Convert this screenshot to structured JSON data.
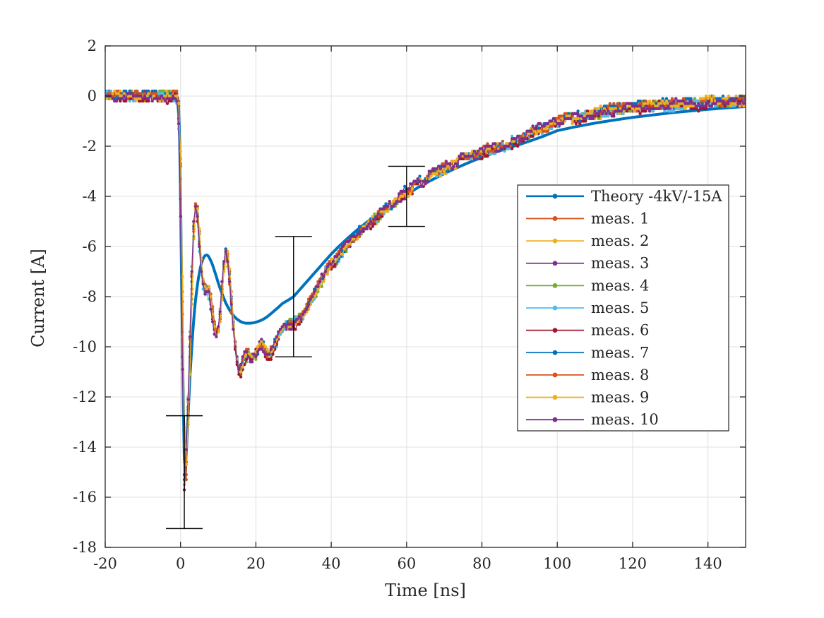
{
  "figure": {
    "background": "#ffffff",
    "axes_color": "#262626",
    "grid_color": "#e0e0e0",
    "errorbar_color": "#000000"
  },
  "chart_data": {
    "type": "line",
    "title": "",
    "xlabel": "Time [ns]",
    "ylabel": "Current [A]",
    "xlim": [
      -20,
      150
    ],
    "ylim": [
      -18,
      2
    ],
    "xticks": [
      -20,
      0,
      20,
      40,
      60,
      80,
      100,
      120,
      140
    ],
    "yticks": [
      2,
      0,
      -2,
      -4,
      -6,
      -8,
      -10,
      -12,
      -14,
      -16,
      -18
    ],
    "grid": true,
    "legend_position": "right-middle",
    "series": [
      {
        "name": "Theory -4kV/-15A",
        "color": "#0072BD",
        "kind": "theory"
      },
      {
        "name": "meas. 1",
        "color": "#D95319",
        "kind": "measurement",
        "seed": 1
      },
      {
        "name": "meas. 2",
        "color": "#EDB120",
        "kind": "measurement",
        "seed": 2
      },
      {
        "name": "meas. 3",
        "color": "#7E2F8E",
        "kind": "measurement",
        "seed": 3
      },
      {
        "name": "meas. 4",
        "color": "#77AC30",
        "kind": "measurement",
        "seed": 4
      },
      {
        "name": "meas. 5",
        "color": "#4DBEEE",
        "kind": "measurement",
        "seed": 5
      },
      {
        "name": "meas. 6",
        "color": "#A2142F",
        "kind": "measurement",
        "seed": 6
      },
      {
        "name": "meas. 7",
        "color": "#0072BD",
        "kind": "measurement",
        "seed": 7
      },
      {
        "name": "meas. 8",
        "color": "#D95319",
        "kind": "measurement",
        "seed": 8
      },
      {
        "name": "meas. 9",
        "color": "#EDB120",
        "kind": "measurement",
        "seed": 9
      },
      {
        "name": "meas. 10",
        "color": "#7E2F8E",
        "kind": "measurement",
        "seed": 10
      }
    ],
    "theory_points": [
      [
        -20,
        0
      ],
      [
        -0.8,
        0
      ],
      [
        -0.5,
        -0.5
      ],
      [
        -0.2,
        -2
      ],
      [
        0,
        -4
      ],
      [
        0.3,
        -7.5
      ],
      [
        0.6,
        -11
      ],
      [
        0.9,
        -13.8
      ],
      [
        1.1,
        -15
      ],
      [
        1.4,
        -14.6
      ],
      [
        1.8,
        -13.4
      ],
      [
        2.2,
        -12.1
      ],
      [
        2.6,
        -10.9
      ],
      [
        3,
        -10
      ],
      [
        3.4,
        -9.1
      ],
      [
        3.8,
        -8.4
      ],
      [
        4.2,
        -7.85
      ],
      [
        4.6,
        -7.4
      ],
      [
        5,
        -7.05
      ],
      [
        5.4,
        -6.75
      ],
      [
        5.8,
        -6.55
      ],
      [
        6.2,
        -6.42
      ],
      [
        6.6,
        -6.35
      ],
      [
        7,
        -6.34
      ],
      [
        7.4,
        -6.38
      ],
      [
        7.8,
        -6.5
      ],
      [
        8.2,
        -6.62
      ],
      [
        8.6,
        -6.78
      ],
      [
        9,
        -6.97
      ],
      [
        9.5,
        -7.2
      ],
      [
        10,
        -7.45
      ],
      [
        10.5,
        -7.67
      ],
      [
        11,
        -7.88
      ],
      [
        11.5,
        -8.07
      ],
      [
        12,
        -8.25
      ],
      [
        12.5,
        -8.4
      ],
      [
        13,
        -8.53
      ],
      [
        13.5,
        -8.65
      ],
      [
        14,
        -8.75
      ],
      [
        14.5,
        -8.83
      ],
      [
        15,
        -8.9
      ],
      [
        15.5,
        -8.95
      ],
      [
        16,
        -9
      ],
      [
        16.5,
        -9.03
      ],
      [
        17,
        -9.05
      ],
      [
        17.5,
        -9.06
      ],
      [
        18,
        -9.06
      ],
      [
        18.5,
        -9.06
      ],
      [
        19,
        -9.05
      ],
      [
        19.5,
        -9.04
      ],
      [
        20,
        -9.02
      ],
      [
        21,
        -8.97
      ],
      [
        22,
        -8.9
      ],
      [
        23,
        -8.8
      ],
      [
        24,
        -8.68
      ],
      [
        25,
        -8.55
      ],
      [
        26,
        -8.42
      ],
      [
        27,
        -8.28
      ],
      [
        28,
        -8.19
      ],
      [
        29,
        -8.1
      ],
      [
        30,
        -8
      ],
      [
        31,
        -7.83
      ],
      [
        32,
        -7.66
      ],
      [
        33,
        -7.49
      ],
      [
        34,
        -7.32
      ],
      [
        35,
        -7.15
      ],
      [
        36,
        -6.98
      ],
      [
        37,
        -6.81
      ],
      [
        38,
        -6.64
      ],
      [
        39,
        -6.47
      ],
      [
        40,
        -6.3
      ],
      [
        42,
        -6
      ],
      [
        44,
        -5.72
      ],
      [
        46,
        -5.45
      ],
      [
        48,
        -5.2
      ],
      [
        50,
        -4.97
      ],
      [
        52,
        -4.74
      ],
      [
        54,
        -4.52
      ],
      [
        56,
        -4.31
      ],
      [
        58,
        -4.11
      ],
      [
        60,
        -3.92
      ],
      [
        63,
        -3.65
      ],
      [
        66,
        -3.4
      ],
      [
        69,
        -3.17
      ],
      [
        72,
        -2.95
      ],
      [
        75,
        -2.75
      ],
      [
        78,
        -2.56
      ],
      [
        81,
        -2.39
      ],
      [
        84,
        -2.22
      ],
      [
        87,
        -2.07
      ],
      [
        90,
        -1.93
      ],
      [
        93,
        -1.78
      ],
      [
        96,
        -1.62
      ],
      [
        100,
        -1.38
      ],
      [
        105,
        -1.22
      ],
      [
        110,
        -1.08
      ],
      [
        115,
        -0.96
      ],
      [
        120,
        -0.85
      ],
      [
        125,
        -0.76
      ],
      [
        130,
        -0.67
      ],
      [
        135,
        -0.6
      ],
      [
        140,
        -0.53
      ],
      [
        145,
        -0.47
      ],
      [
        150,
        -0.42
      ]
    ],
    "measurement_base_points": [
      [
        -20,
        0
      ],
      [
        -1,
        0
      ],
      [
        -0.6,
        -0.3
      ],
      [
        -0.3,
        -1.2
      ],
      [
        0,
        -3.2
      ],
      [
        0.3,
        -6.5
      ],
      [
        0.6,
        -10.5
      ],
      [
        0.9,
        -14
      ],
      [
        1.1,
        -15.6
      ],
      [
        1.4,
        -15.2
      ],
      [
        1.7,
        -14
      ],
      [
        2,
        -12.6
      ],
      [
        2.4,
        -10.8
      ],
      [
        2.8,
        -8.6
      ],
      [
        3.1,
        -7
      ],
      [
        3.4,
        -5.6
      ],
      [
        3.7,
        -4.7
      ],
      [
        4,
        -4.35
      ],
      [
        4.3,
        -4.4
      ],
      [
        4.6,
        -4.8
      ],
      [
        5,
        -5.7
      ],
      [
        5.4,
        -6.6
      ],
      [
        5.8,
        -7.3
      ],
      [
        6.2,
        -7.6
      ],
      [
        6.6,
        -7.75
      ],
      [
        7,
        -7.8
      ],
      [
        7.4,
        -7.7
      ],
      [
        7.8,
        -7.9
      ],
      [
        8.2,
        -8.35
      ],
      [
        8.6,
        -8.9
      ],
      [
        9,
        -9.25
      ],
      [
        9.4,
        -9.45
      ],
      [
        9.8,
        -9.45
      ],
      [
        10.2,
        -9.2
      ],
      [
        10.6,
        -8.6
      ],
      [
        11,
        -7.7
      ],
      [
        11.4,
        -6.9
      ],
      [
        11.8,
        -6.45
      ],
      [
        12.1,
        -6.3
      ],
      [
        12.4,
        -6.4
      ],
      [
        12.8,
        -6.9
      ],
      [
        13.2,
        -7.6
      ],
      [
        13.6,
        -8.4
      ],
      [
        14,
        -9.1
      ],
      [
        14.4,
        -9.8
      ],
      [
        14.8,
        -10.4
      ],
      [
        15.2,
        -10.8
      ],
      [
        15.6,
        -11
      ],
      [
        16,
        -10.95
      ],
      [
        16.4,
        -10.75
      ],
      [
        16.8,
        -10.55
      ],
      [
        17.2,
        -10.4
      ],
      [
        17.6,
        -10.3
      ],
      [
        18,
        -10.35
      ],
      [
        18.4,
        -10.45
      ],
      [
        18.8,
        -10.55
      ],
      [
        19.2,
        -10.5
      ],
      [
        19.6,
        -10.4
      ],
      [
        20,
        -10.3
      ],
      [
        20.5,
        -10.15
      ],
      [
        21,
        -10
      ],
      [
        21.5,
        -9.95
      ],
      [
        22,
        -10.05
      ],
      [
        22.5,
        -10.2
      ],
      [
        23,
        -10.3
      ],
      [
        23.5,
        -10.35
      ],
      [
        24,
        -10.3
      ],
      [
        24.5,
        -10.15
      ],
      [
        25,
        -9.95
      ],
      [
        25.5,
        -9.8
      ],
      [
        26,
        -9.6
      ],
      [
        26.5,
        -9.45
      ],
      [
        27,
        -9.35
      ],
      [
        27.5,
        -9.25
      ],
      [
        28,
        -9.2
      ],
      [
        28.5,
        -9.15
      ],
      [
        29,
        -9.1
      ],
      [
        30,
        -9.05
      ],
      [
        31,
        -8.95
      ],
      [
        32,
        -8.85
      ],
      [
        33,
        -8.6
      ],
      [
        34,
        -8.35
      ],
      [
        35,
        -8.05
      ],
      [
        36,
        -7.75
      ],
      [
        37,
        -7.45
      ],
      [
        38,
        -7.15
      ],
      [
        39,
        -6.9
      ],
      [
        40,
        -6.7
      ],
      [
        41,
        -6.55
      ],
      [
        42,
        -6.4
      ],
      [
        43,
        -6.2
      ],
      [
        44,
        -6
      ],
      [
        45,
        -5.85
      ],
      [
        46,
        -5.7
      ],
      [
        47,
        -5.55
      ],
      [
        48,
        -5.4
      ],
      [
        49,
        -5.25
      ],
      [
        50,
        -5.1
      ],
      [
        52,
        -4.85
      ],
      [
        54,
        -4.6
      ],
      [
        56,
        -4.35
      ],
      [
        58,
        -4.1
      ],
      [
        60,
        -3.85
      ],
      [
        62,
        -3.6
      ],
      [
        64,
        -3.4
      ],
      [
        66,
        -3.2
      ],
      [
        68,
        -3.05
      ],
      [
        70,
        -2.9
      ],
      [
        72,
        -2.75
      ],
      [
        74,
        -2.6
      ],
      [
        76,
        -2.45
      ],
      [
        78,
        -2.35
      ],
      [
        80,
        -2.25
      ],
      [
        82,
        -2.15
      ],
      [
        84,
        -2.05
      ],
      [
        86,
        -1.95
      ],
      [
        88,
        -1.85
      ],
      [
        90,
        -1.7
      ],
      [
        92,
        -1.55
      ],
      [
        94,
        -1.4
      ],
      [
        96,
        -1.3
      ],
      [
        98,
        -1.18
      ],
      [
        100,
        -1.05
      ],
      [
        102,
        -0.97
      ],
      [
        104,
        -0.9
      ],
      [
        106,
        -0.84
      ],
      [
        108,
        -0.78
      ],
      [
        110,
        -0.7
      ],
      [
        112,
        -0.64
      ],
      [
        114,
        -0.58
      ],
      [
        116,
        -0.54
      ],
      [
        118,
        -0.5
      ],
      [
        120,
        -0.47
      ],
      [
        123,
        -0.43
      ],
      [
        126,
        -0.4
      ],
      [
        129,
        -0.37
      ],
      [
        132,
        -0.34
      ],
      [
        135,
        -0.31
      ],
      [
        138,
        -0.29
      ],
      [
        141,
        -0.27
      ],
      [
        144,
        -0.25
      ],
      [
        147,
        -0.23
      ],
      [
        150,
        -0.2
      ]
    ],
    "measurement_sample_step_ns": 0.5,
    "error_bars": [
      {
        "x": 1,
        "y": -15,
        "err": 2.25
      },
      {
        "x": 30,
        "y": -8,
        "err": 2.4
      },
      {
        "x": 60,
        "y": -4,
        "err": 1.2
      }
    ]
  }
}
